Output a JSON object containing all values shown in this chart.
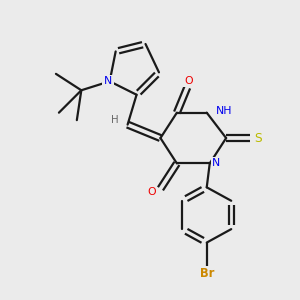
{
  "background_color": "#ebebeb",
  "bond_color": "#1a1a1a",
  "N_color": "#0000ee",
  "O_color": "#ee0000",
  "S_color": "#bbbb00",
  "Br_color": "#cc8800",
  "H_color": "#666666",
  "figsize": [
    3.0,
    3.0
  ],
  "dpi": 100,
  "xlim": [
    0,
    10
  ],
  "ylim": [
    0,
    10
  ]
}
